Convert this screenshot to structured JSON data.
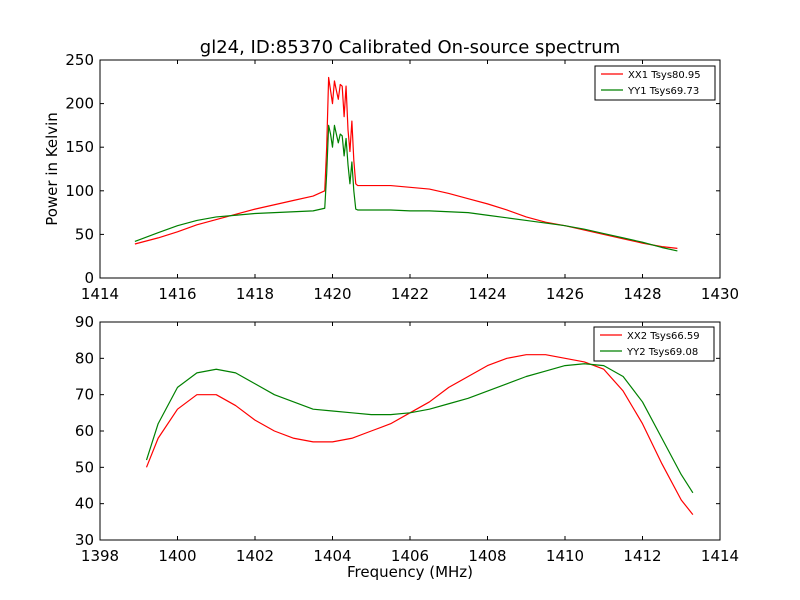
{
  "figure_title": "gl24, ID:85370 Calibrated On-source spectrum",
  "colors": {
    "xx": "#ff0000",
    "yy": "#008000"
  },
  "chart_data": [
    {
      "type": "line",
      "title": "gl24, ID:85370 Calibrated On-source spectrum",
      "xlabel": "",
      "ylabel": "Power in Kelvin",
      "xlim": [
        1414,
        1430
      ],
      "ylim": [
        0,
        250
      ],
      "xticks": [
        1414,
        1416,
        1418,
        1420,
        1422,
        1424,
        1426,
        1428,
        1430
      ],
      "yticks": [
        0,
        50,
        100,
        150,
        200,
        250
      ],
      "grid": false,
      "legend_position": "top-right",
      "series": [
        {
          "name": "XX1 Tsys80.95",
          "color": "#ff0000",
          "x": [
            1414.9,
            1415.5,
            1416,
            1416.5,
            1417,
            1417.5,
            1418,
            1418.5,
            1419,
            1419.5,
            1419.8,
            1419.85,
            1419.9,
            1419.95,
            1420.0,
            1420.05,
            1420.1,
            1420.15,
            1420.2,
            1420.25,
            1420.3,
            1420.35,
            1420.4,
            1420.45,
            1420.5,
            1420.55,
            1420.6,
            1420.65,
            1420.7,
            1421,
            1421.5,
            1422,
            1422.5,
            1423,
            1423.5,
            1424,
            1424.5,
            1425,
            1425.5,
            1426,
            1426.5,
            1427,
            1427.5,
            1428,
            1428.5,
            1428.9
          ],
          "y": [
            39,
            46,
            53,
            61,
            67,
            73,
            79,
            84,
            89,
            94,
            100,
            150,
            230,
            215,
            200,
            226,
            215,
            205,
            222,
            220,
            185,
            220,
            170,
            145,
            180,
            135,
            108,
            106,
            106,
            106,
            106,
            104,
            102,
            97,
            91,
            85,
            78,
            70,
            64,
            60,
            55,
            50,
            45,
            40,
            36,
            34
          ]
        },
        {
          "name": "YY1 Tsys69.73",
          "color": "#008000",
          "x": [
            1414.9,
            1415.5,
            1416,
            1416.5,
            1417,
            1417.5,
            1418,
            1418.5,
            1419,
            1419.5,
            1419.8,
            1419.85,
            1419.9,
            1419.95,
            1420.0,
            1420.05,
            1420.1,
            1420.15,
            1420.2,
            1420.25,
            1420.3,
            1420.35,
            1420.4,
            1420.45,
            1420.5,
            1420.55,
            1420.6,
            1420.65,
            1420.7,
            1421,
            1421.5,
            1422,
            1422.5,
            1423,
            1423.5,
            1424,
            1424.5,
            1425,
            1425.5,
            1426,
            1426.5,
            1427,
            1427.5,
            1428,
            1428.5,
            1428.9
          ],
          "y": [
            42,
            52,
            60,
            66,
            70,
            72,
            74,
            75,
            76,
            77,
            80,
            120,
            175,
            165,
            150,
            175,
            165,
            155,
            165,
            163,
            140,
            160,
            130,
            108,
            133,
            100,
            79,
            78,
            78,
            78,
            78,
            77,
            77,
            76,
            75,
            72,
            69,
            66,
            63,
            60,
            56,
            51,
            46,
            41,
            35,
            31
          ]
        }
      ]
    },
    {
      "type": "line",
      "title": "",
      "xlabel": "Frequency (MHz)",
      "ylabel": "",
      "xlim": [
        1398,
        1414
      ],
      "ylim": [
        30,
        90
      ],
      "xticks": [
        1398,
        1400,
        1402,
        1404,
        1406,
        1408,
        1410,
        1412,
        1414
      ],
      "yticks": [
        30,
        40,
        50,
        60,
        70,
        80,
        90
      ],
      "grid": false,
      "legend_position": "top-right",
      "series": [
        {
          "name": "XX2 Tsys66.59",
          "color": "#ff0000",
          "x": [
            1399.2,
            1399.5,
            1400,
            1400.5,
            1401,
            1401.5,
            1402,
            1402.5,
            1403,
            1403.5,
            1404,
            1404.5,
            1405,
            1405.5,
            1406,
            1406.5,
            1407,
            1407.5,
            1408,
            1408.5,
            1409,
            1409.5,
            1410,
            1410.5,
            1411,
            1411.5,
            1412,
            1412.5,
            1413,
            1413.3
          ],
          "y": [
            50,
            58,
            66,
            70,
            70,
            67,
            63,
            60,
            58,
            57,
            57,
            58,
            60,
            62,
            65,
            68,
            72,
            75,
            78,
            80,
            81,
            81,
            80,
            79,
            77,
            71,
            62,
            51,
            41,
            37
          ]
        },
        {
          "name": "YY2 Tsys69.08",
          "color": "#008000",
          "x": [
            1399.2,
            1399.5,
            1400,
            1400.5,
            1401,
            1401.5,
            1402,
            1402.5,
            1403,
            1403.5,
            1404,
            1404.5,
            1405,
            1405.5,
            1406,
            1406.5,
            1407,
            1407.5,
            1408,
            1408.5,
            1409,
            1409.5,
            1410,
            1410.5,
            1411,
            1411.5,
            1412,
            1412.5,
            1413,
            1413.3
          ],
          "y": [
            52,
            62,
            72,
            76,
            77,
            76,
            73,
            70,
            68,
            66,
            65.5,
            65,
            64.5,
            64.5,
            65,
            66,
            67.5,
            69,
            71,
            73,
            75,
            76.5,
            78,
            78.5,
            78,
            75,
            68,
            58,
            48,
            43
          ]
        }
      ]
    }
  ]
}
